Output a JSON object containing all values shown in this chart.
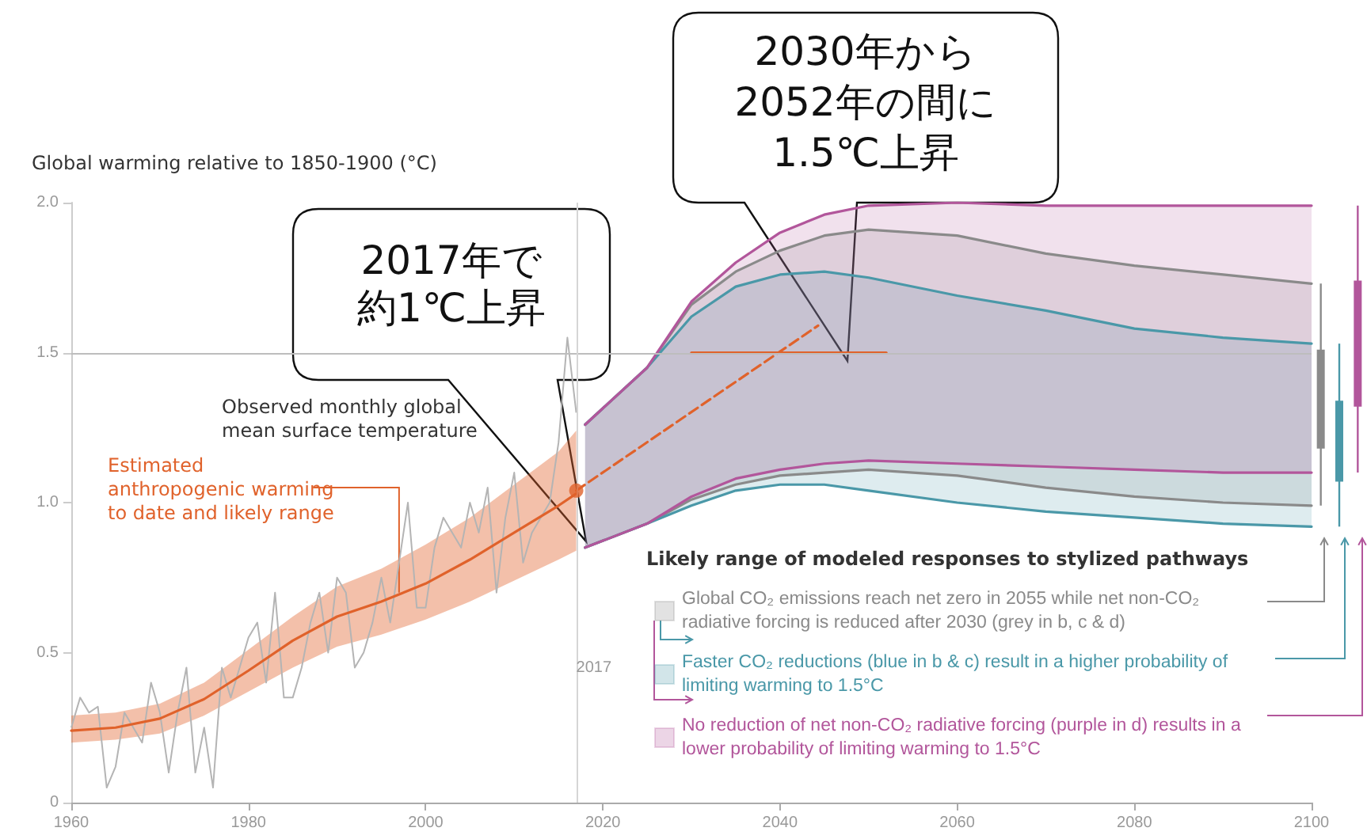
{
  "chart_data": [
    {
      "type": "line",
      "ylabel": "Global warming relative to 1850-1900 (°C)",
      "xlim": [
        1960,
        2100
      ],
      "xticks": [
        1960,
        1980,
        2000,
        2020,
        2040,
        2060,
        2080,
        2100
      ],
      "ylim": [
        0,
        2
      ],
      "yticks": [
        0,
        0.5,
        {
          "value": 1,
          "label": "1.0"
        },
        1.5,
        {
          "value": 2,
          "label": "2.0"
        }
      ],
      "grid": false,
      "legend": "bottom right",
      "legend_title": "Likely range of modeled responses to stylized pathways",
      "annotations": [
        "Observed monthly global mean surface temperature",
        {
          "text": "Estimated anthropogenic warming to date and likely range",
          "x": 1997,
          "y": 0.7
        },
        "2017年で",
        "約1℃上昇",
        "2030年から",
        "2052年の間に",
        "1.5℃上昇"
      ],
      "ref_lines": [
        {
          "axis": "y",
          "value": 1.5,
          "color": "#bdbdbd"
        },
        {
          "axis": "x",
          "value": 2017,
          "label": "2017",
          "color": "#d6d6d6"
        }
      ],
      "series": [
        {
          "type": "line",
          "color": "#b4b4b4",
          "x": [
            1960,
            1961,
            1962,
            1963,
            1964,
            1965,
            1966,
            1967,
            1968,
            1969,
            1970,
            1971,
            1972,
            1973,
            1974,
            1975,
            1976,
            1977,
            1978,
            1979,
            1980,
            1981,
            1982,
            1983,
            1984,
            1985,
            1986,
            1987,
            1988,
            1989,
            1990,
            1991,
            1992,
            1993,
            1994,
            1995,
            1996,
            1997,
            1998,
            1999,
            2000,
            2001,
            2002,
            2003,
            2004,
            2005,
            2006,
            2007,
            2008,
            2009,
            2010,
            2011,
            2012,
            2013,
            2014,
            2015,
            2016,
            2017
          ],
          "values": [
            0.25,
            0.35,
            0.3,
            0.32,
            0.05,
            0.12,
            0.3,
            0.25,
            0.2,
            0.4,
            0.3,
            0.1,
            0.3,
            0.45,
            0.1,
            0.25,
            0.05,
            0.45,
            0.35,
            0.45,
            0.55,
            0.6,
            0.4,
            0.7,
            0.35,
            0.35,
            0.45,
            0.6,
            0.7,
            0.5,
            0.75,
            0.7,
            0.45,
            0.5,
            0.6,
            0.75,
            0.6,
            0.8,
            1.0,
            0.65,
            0.65,
            0.85,
            0.95,
            0.9,
            0.85,
            1.0,
            0.9,
            1.05,
            0.7,
            0.95,
            1.1,
            0.8,
            0.9,
            0.95,
            1.0,
            1.2,
            1.55,
            1.3
          ]
        },
        {
          "type": "line",
          "color": "#e0622b",
          "x": [
            1960,
            1965,
            1970,
            1975,
            1980,
            1985,
            1990,
            1995,
            2000,
            2005,
            2010,
            2015,
            2017
          ],
          "values": [
            0.24,
            0.25,
            0.28,
            0.345,
            0.44,
            0.54,
            0.62,
            0.67,
            0.73,
            0.81,
            0.9,
            0.99,
            1.03
          ],
          "lower": [
            0.2,
            0.21,
            0.23,
            0.29,
            0.37,
            0.45,
            0.52,
            0.56,
            0.61,
            0.67,
            0.74,
            0.81,
            0.84
          ],
          "upper": [
            0.29,
            0.3,
            0.33,
            0.4,
            0.51,
            0.62,
            0.72,
            0.78,
            0.86,
            0.95,
            1.06,
            1.17,
            1.24
          ]
        },
        {
          "type": "line",
          "name": "Global CO₂ emissions reach net zero in 2055 while net non-CO₂ radiative forcing is reduced after 2030 (grey in b, c & d)",
          "color": "#8a8a8a",
          "x": [
            2018,
            2025,
            2030,
            2035,
            2040,
            2045,
            2050,
            2060,
            2070,
            2080,
            2090,
            2100
          ],
          "values": [
            1.26,
            1.45,
            1.66,
            1.77,
            1.84,
            1.89,
            1.91,
            1.89,
            1.83,
            1.79,
            1.76,
            1.73
          ],
          "upper": [
            1.26,
            1.45,
            1.66,
            1.77,
            1.84,
            1.89,
            1.91,
            1.89,
            1.83,
            1.79,
            1.76,
            1.73
          ],
          "lower": [
            0.85,
            0.93,
            1.01,
            1.06,
            1.09,
            1.1,
            1.11,
            1.09,
            1.05,
            1.02,
            1.0,
            0.99
          ]
        },
        {
          "type": "line",
          "color": "#8a8a8a",
          "x": [
            2018,
            2025,
            2030,
            2035,
            2040,
            2045,
            2050,
            2060,
            2070,
            2080,
            2090,
            2100
          ],
          "values": [
            0.85,
            0.93,
            1.01,
            1.06,
            1.09,
            1.1,
            1.11,
            1.09,
            1.05,
            1.02,
            1.0,
            0.99
          ]
        },
        {
          "type": "line",
          "name": "Faster CO₂ reductions (blue in b & c) result in a higher probability of limiting warming to 1.5°C",
          "color": "#4a98a8",
          "x": [
            2018,
            2025,
            2030,
            2035,
            2040,
            2045,
            2050,
            2060,
            2070,
            2080,
            2090,
            2100
          ],
          "values": [
            1.26,
            1.45,
            1.62,
            1.72,
            1.76,
            1.77,
            1.75,
            1.69,
            1.64,
            1.58,
            1.55,
            1.53
          ],
          "upper": [
            1.26,
            1.45,
            1.62,
            1.72,
            1.76,
            1.77,
            1.75,
            1.69,
            1.64,
            1.58,
            1.55,
            1.53
          ],
          "lower": [
            0.85,
            0.93,
            0.99,
            1.04,
            1.06,
            1.06,
            1.04,
            1.0,
            0.97,
            0.95,
            0.93,
            0.92
          ]
        },
        {
          "type": "line",
          "color": "#4a98a8",
          "x": [
            2018,
            2025,
            2030,
            2035,
            2040,
            2045,
            2050,
            2060,
            2070,
            2080,
            2090,
            2100
          ],
          "values": [
            0.85,
            0.93,
            0.99,
            1.04,
            1.06,
            1.06,
            1.04,
            1.0,
            0.97,
            0.95,
            0.93,
            0.92
          ]
        },
        {
          "type": "line",
          "name": "No reduction of net non-CO₂ radiative forcing (purple in d) results in a lower probability of limiting warming to 1.5°C",
          "color": "#b2569b",
          "x": [
            2018,
            2025,
            2030,
            2035,
            2040,
            2045,
            2050,
            2060,
            2070,
            2080,
            2090,
            2100
          ],
          "values": [
            1.26,
            1.45,
            1.67,
            1.8,
            1.9,
            1.96,
            1.99,
            2.0,
            1.99,
            1.99,
            1.99,
            1.99
          ],
          "upper": [
            1.26,
            1.45,
            1.67,
            1.8,
            1.9,
            1.96,
            1.99,
            2.0,
            1.99,
            1.99,
            1.99,
            1.99
          ],
          "lower": [
            0.85,
            0.93,
            1.02,
            1.08,
            1.11,
            1.13,
            1.14,
            1.13,
            1.12,
            1.11,
            1.1,
            1.1
          ]
        },
        {
          "type": "line",
          "color": "#b2569b",
          "x": [
            2018,
            2025,
            2030,
            2035,
            2040,
            2045,
            2050,
            2060,
            2070,
            2080,
            2090,
            2100
          ],
          "values": [
            0.85,
            0.93,
            1.02,
            1.08,
            1.11,
            1.13,
            1.14,
            1.13,
            1.12,
            1.11,
            1.1,
            1.1
          ]
        },
        {
          "type": "line",
          "color": "#e0622b",
          "line_style": "dashed",
          "x": [
            2017,
            2044.3
          ],
          "values": [
            1.04,
            1.59
          ]
        },
        {
          "type": "line",
          "color": "#e0622b",
          "x": [
            2030,
            2052
          ],
          "values": [
            1.5,
            1.5
          ]
        },
        {
          "type": "scatter",
          "color": "#e0622b",
          "marker": "circle",
          "x": [
            2017
          ],
          "values": [
            1.04
          ]
        }
      ]
    },
    {
      "type": "bar",
      "categories": [
        null,
        null,
        null
      ],
      "ylim": [
        0,
        2
      ],
      "tick_labels": false,
      "base": [
        1.18,
        1.07,
        1.32
      ],
      "values": [
        0.33,
        0.27,
        0.42
      ],
      "errors": [
        [
          0.99,
          1.73
        ],
        [
          0.92,
          1.53
        ],
        [
          1.1,
          1.99
        ]
      ],
      "colors": [
        "#8a8a8a",
        "#4a98a8",
        "#b2569b"
      ]
    }
  ]
}
